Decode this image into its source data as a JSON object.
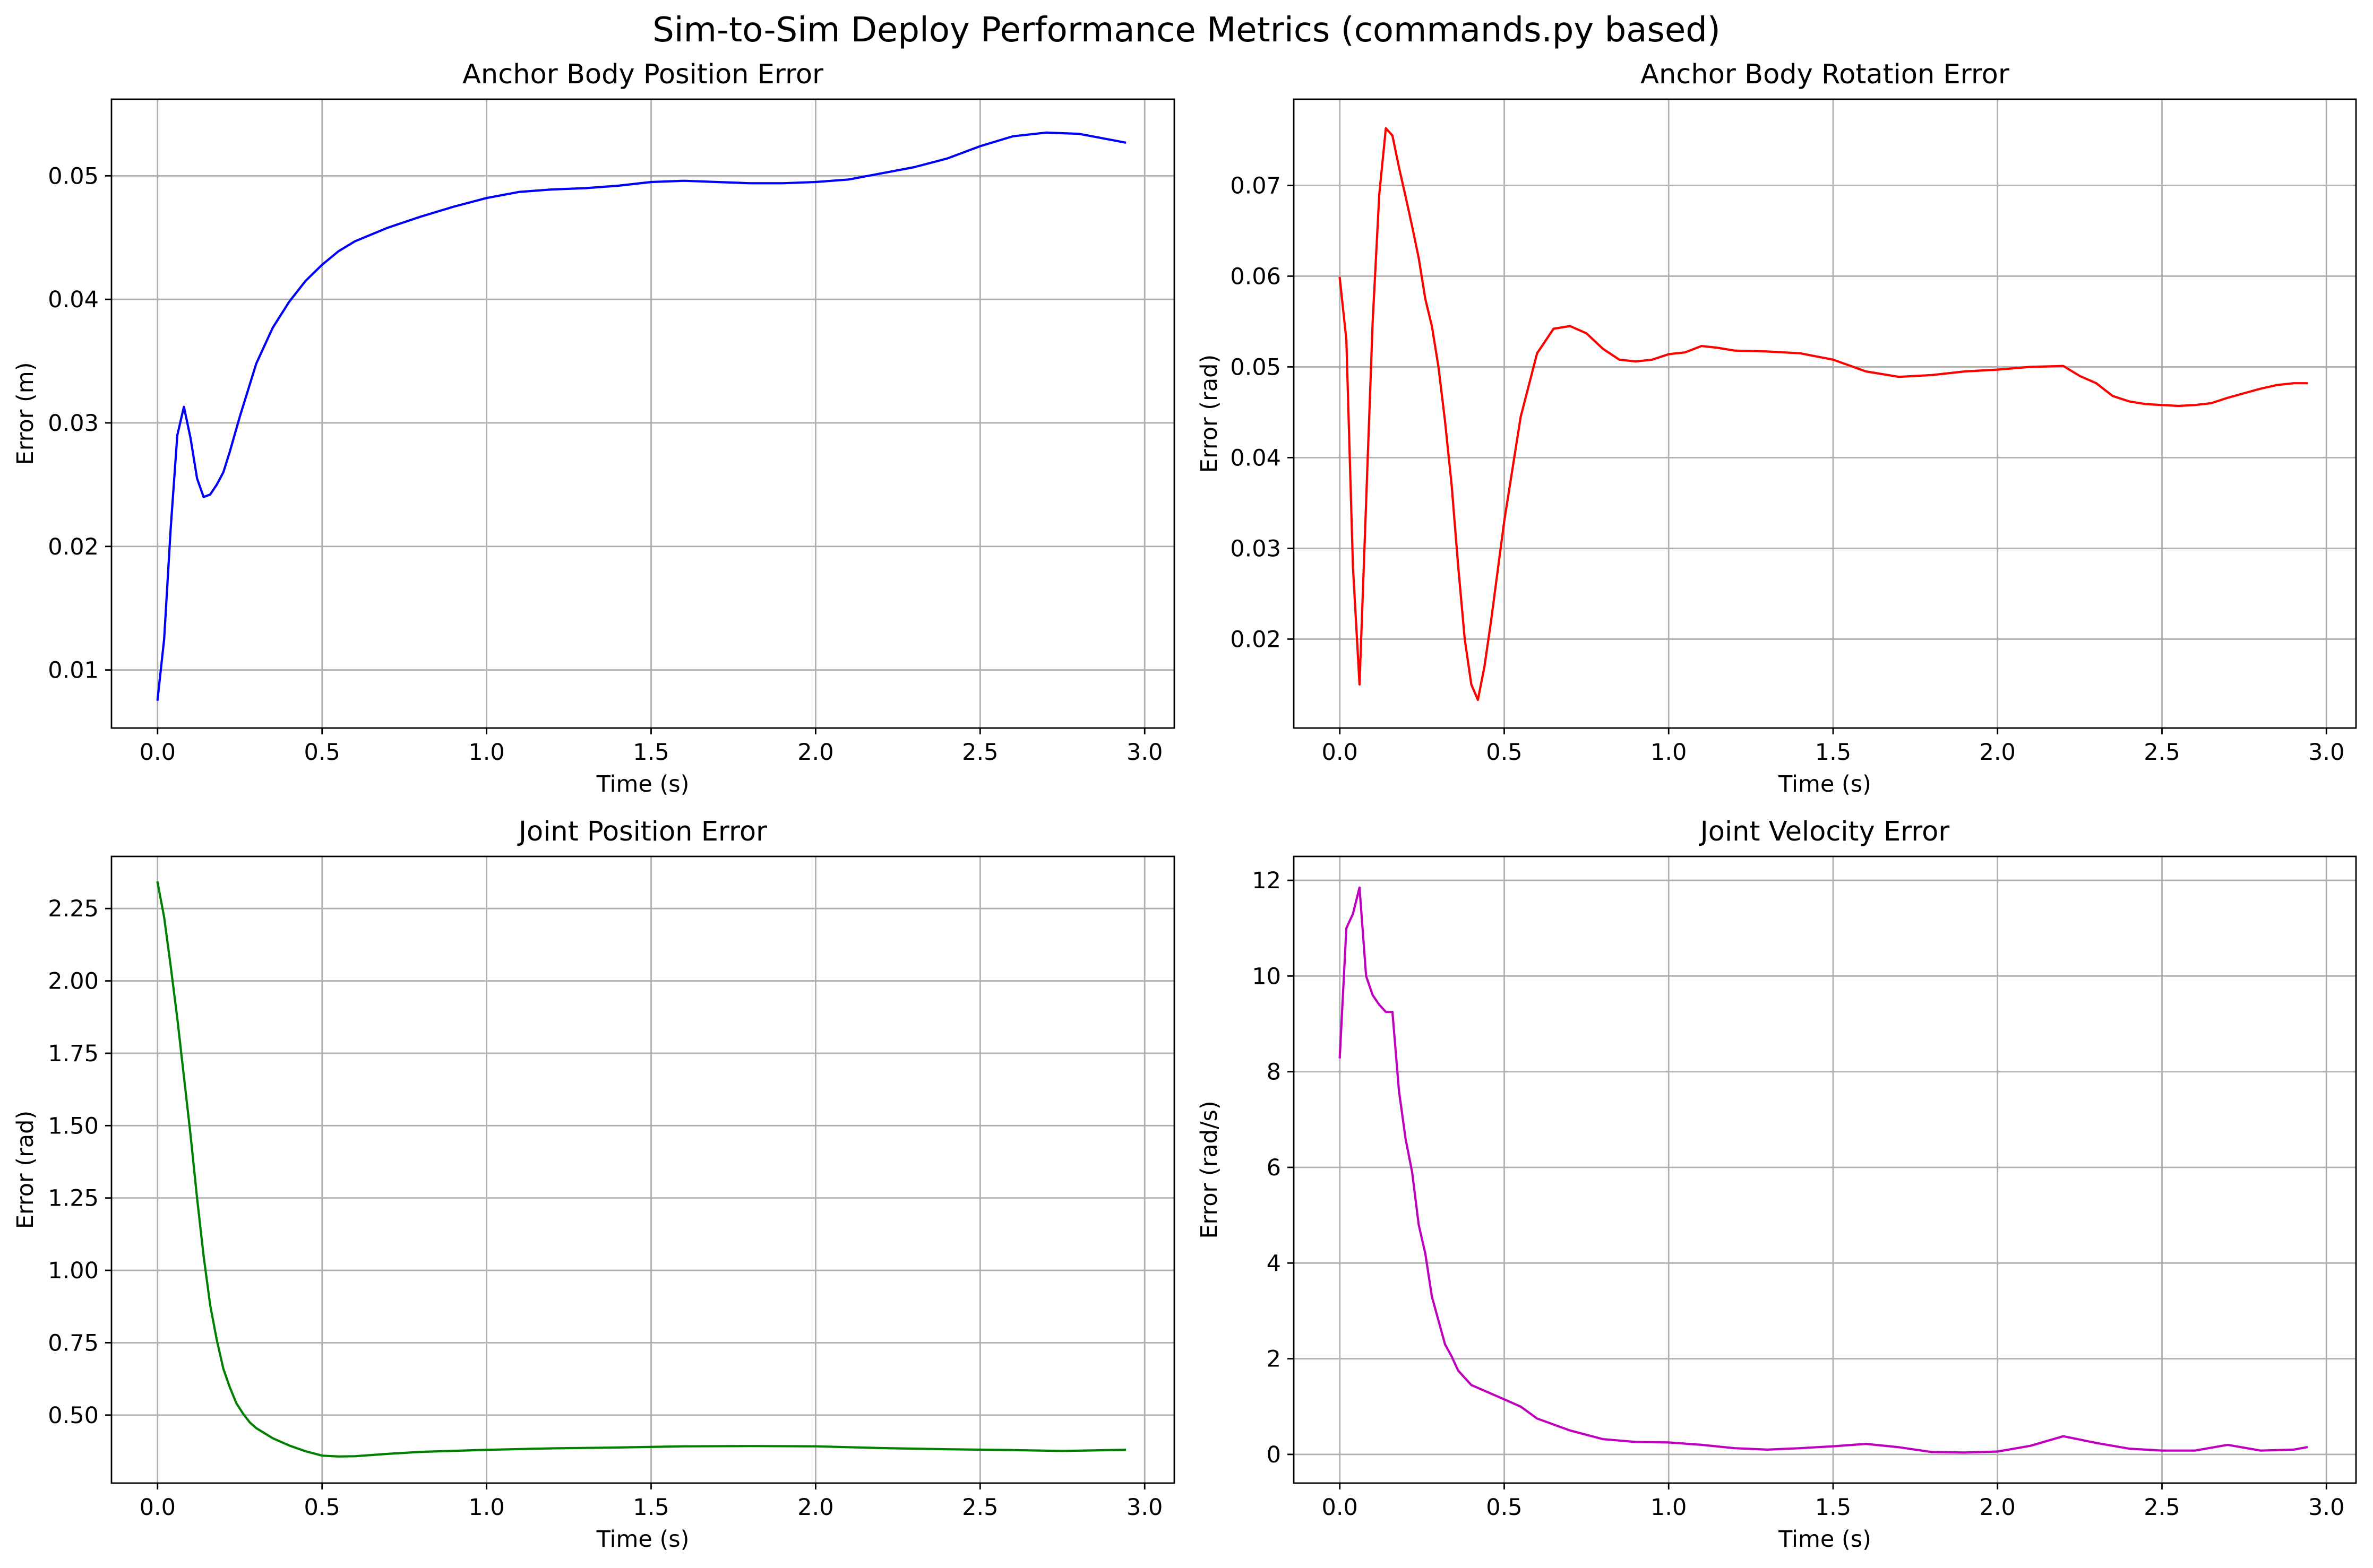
{
  "figure": {
    "title": "Sim-to-Sim Deploy Performance Metrics (commands.py based)"
  },
  "chart_data": [
    {
      "type": "line",
      "title": "Anchor Body Position Error",
      "xlabel": "Time (s)",
      "ylabel": "Error (m)",
      "xlim": [
        -0.14,
        3.09
      ],
      "ylim": [
        0.0053,
        0.0562
      ],
      "xticks": [
        0.0,
        0.5,
        1.0,
        1.5,
        2.0,
        2.5,
        3.0
      ],
      "xtick_labels": [
        "0.0",
        "0.5",
        "1.0",
        "1.5",
        "2.0",
        "2.5",
        "3.0"
      ],
      "yticks": [
        0.01,
        0.02,
        0.03,
        0.04,
        0.05
      ],
      "ytick_labels": [
        "0.01",
        "0.02",
        "0.03",
        "0.04",
        "0.05"
      ],
      "grid": true,
      "color": "#0000ff",
      "series": [
        {
          "x": [
            0.0,
            0.02,
            0.04,
            0.06,
            0.08,
            0.1,
            0.12,
            0.14,
            0.16,
            0.18,
            0.2,
            0.22,
            0.25,
            0.3,
            0.35,
            0.4,
            0.45,
            0.5,
            0.55,
            0.6,
            0.7,
            0.8,
            0.9,
            1.0,
            1.1,
            1.2,
            1.3,
            1.4,
            1.5,
            1.6,
            1.7,
            1.8,
            1.9,
            2.0,
            2.1,
            2.2,
            2.3,
            2.4,
            2.5,
            2.6,
            2.7,
            2.8,
            2.9,
            2.94
          ],
          "y": [
            0.0076,
            0.0125,
            0.0215,
            0.029,
            0.0313,
            0.0288,
            0.0255,
            0.024,
            0.0242,
            0.025,
            0.026,
            0.0277,
            0.0305,
            0.0348,
            0.0377,
            0.0398,
            0.0415,
            0.0428,
            0.0439,
            0.0447,
            0.0458,
            0.0467,
            0.0475,
            0.0482,
            0.0487,
            0.0489,
            0.049,
            0.0492,
            0.0495,
            0.0496,
            0.0495,
            0.0494,
            0.0494,
            0.0495,
            0.0497,
            0.0502,
            0.0507,
            0.0514,
            0.0524,
            0.0532,
            0.0535,
            0.0534,
            0.0529,
            0.0527
          ]
        }
      ]
    },
    {
      "type": "line",
      "title": "Anchor Body Rotation Error",
      "xlabel": "Time (s)",
      "ylabel": "Error (rad)",
      "xlim": [
        -0.14,
        3.09
      ],
      "ylim": [
        0.0102,
        0.0795
      ],
      "xticks": [
        0.0,
        0.5,
        1.0,
        1.5,
        2.0,
        2.5,
        3.0
      ],
      "xtick_labels": [
        "0.0",
        "0.5",
        "1.0",
        "1.5",
        "2.0",
        "2.5",
        "3.0"
      ],
      "yticks": [
        0.02,
        0.03,
        0.04,
        0.05,
        0.06,
        0.07
      ],
      "ytick_labels": [
        "0.02",
        "0.03",
        "0.04",
        "0.05",
        "0.06",
        "0.07"
      ],
      "grid": true,
      "color": "#ff0000",
      "series": [
        {
          "x": [
            0.0,
            0.02,
            0.04,
            0.06,
            0.08,
            0.1,
            0.12,
            0.14,
            0.16,
            0.18,
            0.2,
            0.22,
            0.24,
            0.26,
            0.28,
            0.3,
            0.32,
            0.34,
            0.36,
            0.38,
            0.4,
            0.42,
            0.44,
            0.46,
            0.5,
            0.55,
            0.6,
            0.65,
            0.7,
            0.75,
            0.8,
            0.85,
            0.9,
            0.95,
            1.0,
            1.05,
            1.1,
            1.15,
            1.2,
            1.3,
            1.4,
            1.5,
            1.6,
            1.7,
            1.8,
            1.9,
            2.0,
            2.1,
            2.2,
            2.25,
            2.3,
            2.35,
            2.4,
            2.45,
            2.5,
            2.55,
            2.6,
            2.65,
            2.7,
            2.75,
            2.8,
            2.85,
            2.9,
            2.94
          ],
          "y": [
            0.0598,
            0.053,
            0.028,
            0.015,
            0.035,
            0.055,
            0.069,
            0.0763,
            0.0755,
            0.072,
            0.0688,
            0.0655,
            0.062,
            0.0575,
            0.0545,
            0.05,
            0.044,
            0.037,
            0.028,
            0.02,
            0.015,
            0.0133,
            0.017,
            0.022,
            0.033,
            0.0445,
            0.0515,
            0.0542,
            0.0545,
            0.0537,
            0.052,
            0.0508,
            0.0506,
            0.0508,
            0.0514,
            0.0516,
            0.0523,
            0.0521,
            0.0518,
            0.0517,
            0.0515,
            0.0508,
            0.0495,
            0.0489,
            0.0491,
            0.0495,
            0.0497,
            0.05,
            0.0501,
            0.049,
            0.0482,
            0.0468,
            0.0462,
            0.0459,
            0.0458,
            0.0457,
            0.0458,
            0.046,
            0.0466,
            0.0471,
            0.0476,
            0.048,
            0.0482,
            0.0482
          ]
        }
      ]
    },
    {
      "type": "line",
      "title": "Joint Position Error",
      "xlabel": "Time (s)",
      "ylabel": "Error (rad)",
      "xlim": [
        -0.14,
        3.09
      ],
      "ylim": [
        0.265,
        2.43
      ],
      "xticks": [
        0.0,
        0.5,
        1.0,
        1.5,
        2.0,
        2.5,
        3.0
      ],
      "xtick_labels": [
        "0.0",
        "0.5",
        "1.0",
        "1.5",
        "2.0",
        "2.5",
        "3.0"
      ],
      "yticks": [
        0.5,
        0.75,
        1.0,
        1.25,
        1.5,
        1.75,
        2.0,
        2.25
      ],
      "ytick_labels": [
        "0.50",
        "0.75",
        "1.00",
        "1.25",
        "1.50",
        "1.75",
        "2.00",
        "2.25"
      ],
      "grid": true,
      "color": "#008000",
      "series": [
        {
          "x": [
            0.0,
            0.02,
            0.04,
            0.06,
            0.08,
            0.1,
            0.12,
            0.14,
            0.16,
            0.18,
            0.2,
            0.22,
            0.24,
            0.26,
            0.28,
            0.3,
            0.35,
            0.4,
            0.45,
            0.5,
            0.55,
            0.6,
            0.7,
            0.8,
            1.0,
            1.2,
            1.4,
            1.6,
            1.8,
            2.0,
            2.2,
            2.4,
            2.6,
            2.75,
            2.94
          ],
          "y": [
            2.34,
            2.22,
            2.05,
            1.87,
            1.67,
            1.47,
            1.25,
            1.05,
            0.88,
            0.76,
            0.66,
            0.595,
            0.54,
            0.505,
            0.475,
            0.455,
            0.42,
            0.395,
            0.375,
            0.36,
            0.357,
            0.358,
            0.366,
            0.373,
            0.38,
            0.385,
            0.388,
            0.392,
            0.393,
            0.392,
            0.386,
            0.382,
            0.379,
            0.376,
            0.38
          ]
        }
      ]
    },
    {
      "type": "line",
      "title": "Joint Velocity Error",
      "xlabel": "Time (s)",
      "ylabel": "Error (rad/s)",
      "xlim": [
        -0.14,
        3.09
      ],
      "ylim": [
        -0.6,
        12.5
      ],
      "xticks": [
        0.0,
        0.5,
        1.0,
        1.5,
        2.0,
        2.5,
        3.0
      ],
      "xtick_labels": [
        "0.0",
        "0.5",
        "1.0",
        "1.5",
        "2.0",
        "2.5",
        "3.0"
      ],
      "yticks": [
        0,
        2,
        4,
        6,
        8,
        10,
        12
      ],
      "ytick_labels": [
        "0",
        "2",
        "4",
        "6",
        "8",
        "10",
        "12"
      ],
      "grid": true,
      "color": "#bf00bf",
      "series": [
        {
          "x": [
            0.0,
            0.02,
            0.04,
            0.06,
            0.08,
            0.1,
            0.12,
            0.14,
            0.16,
            0.18,
            0.2,
            0.22,
            0.24,
            0.26,
            0.28,
            0.3,
            0.32,
            0.34,
            0.36,
            0.4,
            0.45,
            0.5,
            0.55,
            0.6,
            0.7,
            0.8,
            0.9,
            1.0,
            1.1,
            1.2,
            1.3,
            1.4,
            1.5,
            1.6,
            1.7,
            1.8,
            1.9,
            2.0,
            2.1,
            2.2,
            2.3,
            2.4,
            2.5,
            2.6,
            2.7,
            2.8,
            2.9,
            2.94
          ],
          "y": [
            8.3,
            11.0,
            11.3,
            11.85,
            10.0,
            9.6,
            9.4,
            9.25,
            9.25,
            7.6,
            6.6,
            5.9,
            4.8,
            4.2,
            3.3,
            2.8,
            2.3,
            2.05,
            1.75,
            1.45,
            1.3,
            1.15,
            1.0,
            0.75,
            0.5,
            0.32,
            0.26,
            0.25,
            0.2,
            0.13,
            0.1,
            0.13,
            0.17,
            0.22,
            0.15,
            0.05,
            0.04,
            0.06,
            0.18,
            0.38,
            0.24,
            0.12,
            0.08,
            0.08,
            0.2,
            0.08,
            0.1,
            0.15
          ]
        }
      ]
    }
  ]
}
